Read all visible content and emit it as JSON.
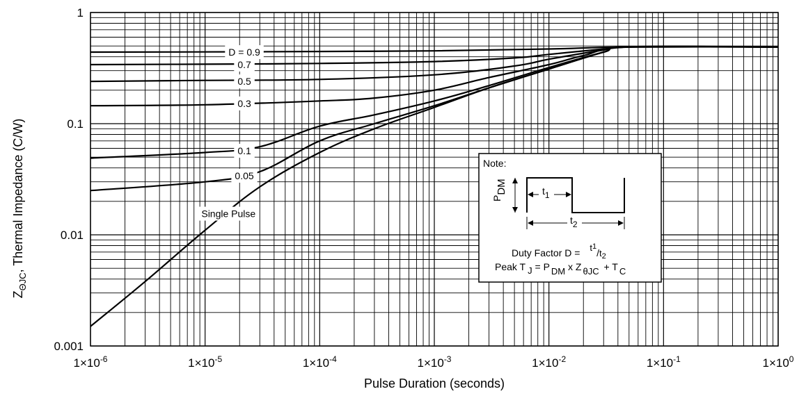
{
  "chart_data": {
    "type": "line",
    "x_scale": "log",
    "y_scale": "log",
    "xlim": [
      1e-06,
      1
    ],
    "ylim": [
      0.001,
      1
    ],
    "grid": true,
    "xlabel": "Pulse Duration (seconds)",
    "ylabel_main": "Z",
    "ylabel_sub": "ΘJC",
    "ylabel_rest": ", Thermal Impedance (C/W)",
    "x_ticks": [
      {
        "value": 1e-06,
        "base": "1×10",
        "exp": "-6"
      },
      {
        "value": 1e-05,
        "base": "1×10",
        "exp": "-5"
      },
      {
        "value": 0.0001,
        "base": "1×10",
        "exp": "-4"
      },
      {
        "value": 0.001,
        "base": "1×10",
        "exp": "-3"
      },
      {
        "value": 0.01,
        "base": "1×10",
        "exp": "-2"
      },
      {
        "value": 0.1,
        "base": "1×10",
        "exp": "-1"
      },
      {
        "value": 1,
        "base": "1×10",
        "exp": "0"
      }
    ],
    "y_ticks": [
      {
        "value": 1,
        "label": "1"
      },
      {
        "value": 0.1,
        "label": "0.1"
      },
      {
        "value": 0.01,
        "label": "0.01"
      },
      {
        "value": 0.001,
        "label": "0.001"
      }
    ],
    "series": [
      {
        "name": "D = 0.9",
        "points": [
          [
            1e-06,
            0.44
          ],
          [
            1e-05,
            0.442
          ],
          [
            0.0001,
            0.446
          ],
          [
            0.001,
            0.452
          ],
          [
            0.01,
            0.47
          ],
          [
            0.05,
            0.49
          ],
          [
            1,
            0.49
          ]
        ]
      },
      {
        "name": "0.7",
        "points": [
          [
            1e-06,
            0.34
          ],
          [
            1e-05,
            0.343
          ],
          [
            0.0001,
            0.348
          ],
          [
            0.001,
            0.362
          ],
          [
            0.005,
            0.39
          ],
          [
            0.01,
            0.42
          ],
          [
            0.03,
            0.47
          ],
          [
            0.05,
            0.49
          ],
          [
            1,
            0.49
          ]
        ]
      },
      {
        "name": "0.5",
        "points": [
          [
            1e-06,
            0.24
          ],
          [
            1e-05,
            0.245
          ],
          [
            0.0001,
            0.25
          ],
          [
            0.001,
            0.275
          ],
          [
            0.005,
            0.33
          ],
          [
            0.01,
            0.38
          ],
          [
            0.03,
            0.46
          ],
          [
            0.05,
            0.49
          ],
          [
            1,
            0.49
          ]
        ]
      },
      {
        "name": "0.3",
        "points": [
          [
            1e-06,
            0.145
          ],
          [
            1e-05,
            0.148
          ],
          [
            0.0001,
            0.16
          ],
          [
            0.0003,
            0.17
          ],
          [
            0.001,
            0.2
          ],
          [
            0.003,
            0.26
          ],
          [
            0.01,
            0.34
          ],
          [
            0.02,
            0.41
          ],
          [
            0.05,
            0.49
          ],
          [
            1,
            0.49
          ]
        ]
      },
      {
        "name": "0.1",
        "points": [
          [
            1e-06,
            0.049
          ],
          [
            1e-05,
            0.055
          ],
          [
            3e-05,
            0.062
          ],
          [
            0.0001,
            0.095
          ],
          [
            0.0003,
            0.12
          ],
          [
            0.001,
            0.16
          ],
          [
            0.003,
            0.22
          ],
          [
            0.01,
            0.32
          ],
          [
            0.03,
            0.44
          ],
          [
            0.05,
            0.49
          ],
          [
            1,
            0.49
          ]
        ]
      },
      {
        "name": "0.05",
        "points": [
          [
            1e-06,
            0.025
          ],
          [
            1e-05,
            0.03
          ],
          [
            3e-05,
            0.037
          ],
          [
            0.0001,
            0.07
          ],
          [
            0.0003,
            0.1
          ],
          [
            0.001,
            0.145
          ],
          [
            0.003,
            0.21
          ],
          [
            0.01,
            0.31
          ],
          [
            0.03,
            0.44
          ],
          [
            0.05,
            0.49
          ],
          [
            1,
            0.49
          ]
        ]
      },
      {
        "name": "Single Pulse",
        "points": [
          [
            1e-06,
            0.0015
          ],
          [
            3e-06,
            0.0038
          ],
          [
            1e-05,
            0.011
          ],
          [
            3e-05,
            0.027
          ],
          [
            0.0001,
            0.055
          ],
          [
            0.0003,
            0.09
          ],
          [
            0.001,
            0.14
          ],
          [
            0.003,
            0.21
          ],
          [
            0.01,
            0.31
          ],
          [
            0.03,
            0.44
          ],
          [
            0.05,
            0.49
          ],
          [
            1,
            0.49
          ]
        ]
      }
    ],
    "curve_labels": [
      {
        "text": "D = 0.9",
        "x": 2.2e-05,
        "y": 0.44,
        "bg": true
      },
      {
        "text": "0.7",
        "x": 2.2e-05,
        "y": 0.34,
        "bg": true
      },
      {
        "text": "0.5",
        "x": 2.2e-05,
        "y": 0.24,
        "bg": true
      },
      {
        "text": "0.3",
        "x": 2.2e-05,
        "y": 0.152,
        "bg": true
      },
      {
        "text": "0.1",
        "x": 2.2e-05,
        "y": 0.057,
        "bg": true
      },
      {
        "text": "0.05",
        "x": 2.2e-05,
        "y": 0.034,
        "bg": true
      },
      {
        "text": "Single Pulse",
        "x": 1.6e-05,
        "y": 0.0155,
        "bg": true
      }
    ]
  },
  "note_box": {
    "title": "Note:",
    "p": "P",
    "p_sub": "DM",
    "t1": "t",
    "t1_sub": "1",
    "t2": "t",
    "t2_sub": "2",
    "duty_label": "Duty Factor D = ",
    "duty_sup1": "1",
    "duty_sub2": "2",
    "peak_label": "Peak T",
    "peak_sub_j": "J",
    "peak_eq": " = P",
    "peak_sub_dm": "DM",
    "peak_x": " x Z",
    "peak_sub_theta": "θJC",
    "peak_plus": " + T",
    "peak_sub_c": "C"
  }
}
